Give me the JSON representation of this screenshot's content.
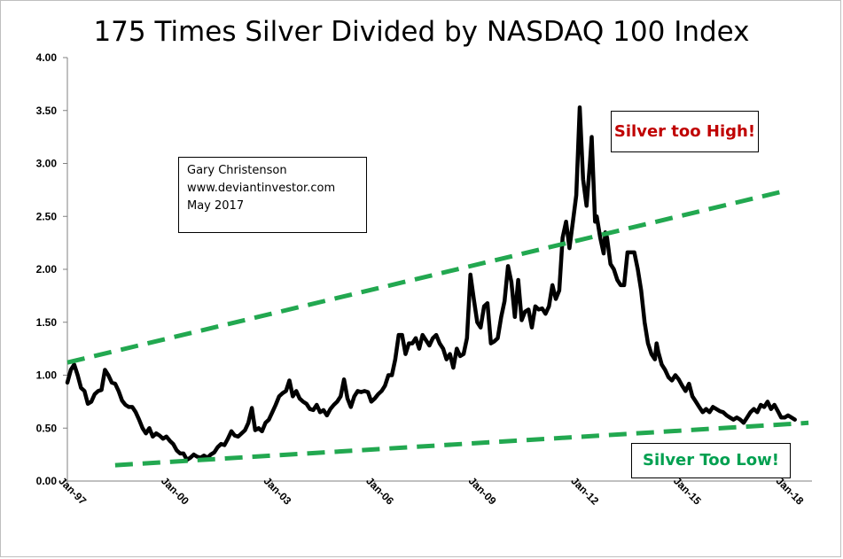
{
  "title": "175 Times Silver Divided by NASDAQ  100 Index",
  "credit": {
    "line1": "Gary Christenson",
    "line2": "www.deviantinvestor.com",
    "line3": "May 2017"
  },
  "callouts": {
    "high": {
      "text": "Silver too High!",
      "color": "#c00000"
    },
    "low": {
      "text": "Silver Too Low!",
      "color": "#00a050"
    }
  },
  "chart_data": {
    "type": "line",
    "title": "175 Times Silver Divided by NASDAQ  100 Index",
    "xlabel": "",
    "ylabel": "",
    "xlim": [
      1997.0,
      2018.8
    ],
    "ylim": [
      0,
      4.0
    ],
    "yticks": [
      "0.00",
      "0.50",
      "1.00",
      "1.50",
      "2.00",
      "2.50",
      "3.00",
      "3.50",
      "4.00"
    ],
    "xticks": [
      {
        "label": "Jan-97",
        "x": 1997.0
      },
      {
        "label": "Jan-00",
        "x": 2000.0
      },
      {
        "label": "Jan-03",
        "x": 2003.0
      },
      {
        "label": "Jan-06",
        "x": 2006.0
      },
      {
        "label": "Jan-09",
        "x": 2009.0
      },
      {
        "label": "Jan-12",
        "x": 2012.0
      },
      {
        "label": "Jan-15",
        "x": 2015.0
      },
      {
        "label": "Jan-18",
        "x": 2018.0
      }
    ],
    "grid": false,
    "legend": "none",
    "series": [
      {
        "color": "#000000",
        "style": "solid",
        "points": [
          [
            1997.0,
            0.93
          ],
          [
            1997.1,
            1.05
          ],
          [
            1997.2,
            1.1
          ],
          [
            1997.3,
            1.0
          ],
          [
            1997.4,
            0.88
          ],
          [
            1997.5,
            0.85
          ],
          [
            1997.6,
            0.73
          ],
          [
            1997.7,
            0.75
          ],
          [
            1997.8,
            0.82
          ],
          [
            1997.9,
            0.85
          ],
          [
            1998.0,
            0.86
          ],
          [
            1998.1,
            1.05
          ],
          [
            1998.2,
            1.0
          ],
          [
            1998.3,
            0.93
          ],
          [
            1998.4,
            0.92
          ],
          [
            1998.5,
            0.85
          ],
          [
            1998.6,
            0.76
          ],
          [
            1998.7,
            0.72
          ],
          [
            1998.8,
            0.7
          ],
          [
            1998.9,
            0.7
          ],
          [
            1999.0,
            0.65
          ],
          [
            1999.1,
            0.58
          ],
          [
            1999.2,
            0.5
          ],
          [
            1999.3,
            0.45
          ],
          [
            1999.4,
            0.5
          ],
          [
            1999.5,
            0.42
          ],
          [
            1999.6,
            0.45
          ],
          [
            1999.7,
            0.43
          ],
          [
            1999.8,
            0.4
          ],
          [
            1999.9,
            0.42
          ],
          [
            2000.0,
            0.38
          ],
          [
            2000.1,
            0.35
          ],
          [
            2000.2,
            0.29
          ],
          [
            2000.3,
            0.26
          ],
          [
            2000.4,
            0.26
          ],
          [
            2000.5,
            0.2
          ],
          [
            2000.6,
            0.22
          ],
          [
            2000.7,
            0.25
          ],
          [
            2000.8,
            0.23
          ],
          [
            2000.9,
            0.22
          ],
          [
            2001.0,
            0.24
          ],
          [
            2001.1,
            0.22
          ],
          [
            2001.2,
            0.25
          ],
          [
            2001.3,
            0.27
          ],
          [
            2001.4,
            0.32
          ],
          [
            2001.5,
            0.35
          ],
          [
            2001.6,
            0.34
          ],
          [
            2001.7,
            0.4
          ],
          [
            2001.8,
            0.47
          ],
          [
            2001.9,
            0.43
          ],
          [
            2002.0,
            0.42
          ],
          [
            2002.1,
            0.45
          ],
          [
            2002.2,
            0.48
          ],
          [
            2002.3,
            0.55
          ],
          [
            2002.4,
            0.69
          ],
          [
            2002.5,
            0.48
          ],
          [
            2002.6,
            0.5
          ],
          [
            2002.7,
            0.47
          ],
          [
            2002.8,
            0.55
          ],
          [
            2002.9,
            0.58
          ],
          [
            2003.0,
            0.65
          ],
          [
            2003.1,
            0.72
          ],
          [
            2003.2,
            0.8
          ],
          [
            2003.3,
            0.83
          ],
          [
            2003.4,
            0.85
          ],
          [
            2003.5,
            0.95
          ],
          [
            2003.6,
            0.8
          ],
          [
            2003.7,
            0.85
          ],
          [
            2003.8,
            0.78
          ],
          [
            2003.9,
            0.75
          ],
          [
            2004.0,
            0.73
          ],
          [
            2004.1,
            0.68
          ],
          [
            2004.2,
            0.67
          ],
          [
            2004.3,
            0.72
          ],
          [
            2004.4,
            0.65
          ],
          [
            2004.5,
            0.67
          ],
          [
            2004.6,
            0.62
          ],
          [
            2004.7,
            0.68
          ],
          [
            2004.8,
            0.72
          ],
          [
            2004.9,
            0.75
          ],
          [
            2005.0,
            0.8
          ],
          [
            2005.1,
            0.96
          ],
          [
            2005.2,
            0.78
          ],
          [
            2005.3,
            0.7
          ],
          [
            2005.4,
            0.8
          ],
          [
            2005.5,
            0.85
          ],
          [
            2005.6,
            0.84
          ],
          [
            2005.7,
            0.85
          ],
          [
            2005.8,
            0.84
          ],
          [
            2005.9,
            0.75
          ],
          [
            2006.0,
            0.78
          ],
          [
            2006.1,
            0.82
          ],
          [
            2006.2,
            0.85
          ],
          [
            2006.3,
            0.9
          ],
          [
            2006.4,
            1.0
          ],
          [
            2006.5,
            1.0
          ],
          [
            2006.6,
            1.15
          ],
          [
            2006.7,
            1.38
          ],
          [
            2006.8,
            1.38
          ],
          [
            2006.9,
            1.2
          ],
          [
            2007.0,
            1.3
          ],
          [
            2007.1,
            1.3
          ],
          [
            2007.2,
            1.35
          ],
          [
            2007.3,
            1.25
          ],
          [
            2007.4,
            1.38
          ],
          [
            2007.5,
            1.33
          ],
          [
            2007.6,
            1.28
          ],
          [
            2007.7,
            1.35
          ],
          [
            2007.8,
            1.38
          ],
          [
            2007.9,
            1.3
          ],
          [
            2008.0,
            1.25
          ],
          [
            2008.1,
            1.15
          ],
          [
            2008.2,
            1.2
          ],
          [
            2008.3,
            1.07
          ],
          [
            2008.4,
            1.25
          ],
          [
            2008.5,
            1.18
          ],
          [
            2008.6,
            1.2
          ],
          [
            2008.7,
            1.35
          ],
          [
            2008.8,
            1.95
          ],
          [
            2008.9,
            1.72
          ],
          [
            2009.0,
            1.5
          ],
          [
            2009.1,
            1.45
          ],
          [
            2009.2,
            1.65
          ],
          [
            2009.3,
            1.68
          ],
          [
            2009.4,
            1.3
          ],
          [
            2009.5,
            1.32
          ],
          [
            2009.6,
            1.35
          ],
          [
            2009.7,
            1.55
          ],
          [
            2009.8,
            1.7
          ],
          [
            2009.9,
            2.03
          ],
          [
            2010.0,
            1.88
          ],
          [
            2010.1,
            1.55
          ],
          [
            2010.2,
            1.9
          ],
          [
            2010.3,
            1.52
          ],
          [
            2010.4,
            1.6
          ],
          [
            2010.5,
            1.62
          ],
          [
            2010.6,
            1.45
          ],
          [
            2010.7,
            1.65
          ],
          [
            2010.8,
            1.62
          ],
          [
            2010.9,
            1.63
          ],
          [
            2011.0,
            1.58
          ],
          [
            2011.1,
            1.65
          ],
          [
            2011.2,
            1.85
          ],
          [
            2011.3,
            1.72
          ],
          [
            2011.4,
            1.8
          ],
          [
            2011.5,
            2.3
          ],
          [
            2011.6,
            2.45
          ],
          [
            2011.7,
            2.2
          ],
          [
            2011.8,
            2.45
          ],
          [
            2011.9,
            2.7
          ],
          [
            2012.0,
            3.53
          ],
          [
            2012.1,
            2.85
          ],
          [
            2012.2,
            2.6
          ],
          [
            2012.3,
            3.0
          ],
          [
            2012.35,
            3.25
          ],
          [
            2012.45,
            2.45
          ],
          [
            2012.5,
            2.5
          ],
          [
            2012.6,
            2.3
          ],
          [
            2012.7,
            2.15
          ],
          [
            2012.75,
            2.35
          ],
          [
            2012.8,
            2.3
          ],
          [
            2012.9,
            2.05
          ],
          [
            2013.0,
            2.0
          ],
          [
            2013.1,
            1.9
          ],
          [
            2013.2,
            1.85
          ],
          [
            2013.3,
            1.85
          ],
          [
            2013.4,
            2.16
          ],
          [
            2013.5,
            2.16
          ],
          [
            2013.6,
            2.16
          ],
          [
            2013.7,
            2.0
          ],
          [
            2013.8,
            1.8
          ],
          [
            2013.9,
            1.5
          ],
          [
            2014.0,
            1.3
          ],
          [
            2014.1,
            1.2
          ],
          [
            2014.2,
            1.15
          ],
          [
            2014.25,
            1.3
          ],
          [
            2014.3,
            1.22
          ],
          [
            2014.4,
            1.1
          ],
          [
            2014.5,
            1.05
          ],
          [
            2014.6,
            0.98
          ],
          [
            2014.7,
            0.95
          ],
          [
            2014.8,
            1.0
          ],
          [
            2014.9,
            0.96
          ],
          [
            2015.0,
            0.9
          ],
          [
            2015.1,
            0.85
          ],
          [
            2015.2,
            0.92
          ],
          [
            2015.3,
            0.8
          ],
          [
            2015.4,
            0.75
          ],
          [
            2015.5,
            0.7
          ],
          [
            2015.6,
            0.65
          ],
          [
            2015.7,
            0.68
          ],
          [
            2015.8,
            0.65
          ],
          [
            2015.9,
            0.7
          ],
          [
            2016.0,
            0.68
          ],
          [
            2016.1,
            0.66
          ],
          [
            2016.2,
            0.65
          ],
          [
            2016.3,
            0.62
          ],
          [
            2016.4,
            0.6
          ],
          [
            2016.5,
            0.58
          ],
          [
            2016.6,
            0.6
          ],
          [
            2016.7,
            0.58
          ],
          [
            2016.8,
            0.55
          ],
          [
            2016.9,
            0.6
          ],
          [
            2017.0,
            0.65
          ],
          [
            2017.1,
            0.68
          ],
          [
            2017.2,
            0.65
          ],
          [
            2017.3,
            0.72
          ],
          [
            2017.4,
            0.7
          ],
          [
            2017.5,
            0.75
          ],
          [
            2017.6,
            0.68
          ],
          [
            2017.7,
            0.72
          ],
          [
            2017.8,
            0.66
          ],
          [
            2017.9,
            0.6
          ],
          [
            2018.0,
            0.6
          ],
          [
            2018.1,
            0.62
          ],
          [
            2018.2,
            0.6
          ],
          [
            2018.3,
            0.58
          ]
        ]
      },
      {
        "color": "#22a850",
        "style": "dashed",
        "points": [
          [
            1997.0,
            1.12
          ],
          [
            2018.0,
            2.74
          ]
        ]
      },
      {
        "color": "#22a850",
        "style": "dashed",
        "points": [
          [
            1998.4,
            0.15
          ],
          [
            2018.7,
            0.55
          ]
        ]
      }
    ]
  }
}
